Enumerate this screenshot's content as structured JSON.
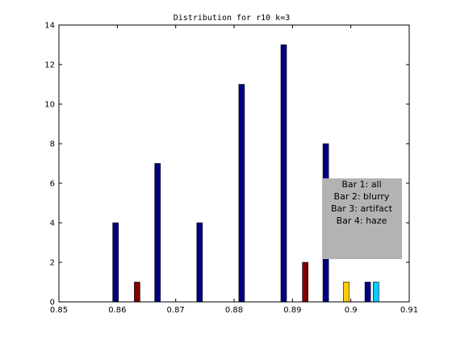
{
  "chart_data": {
    "type": "bar",
    "title": "Distribution for r10 k=3",
    "xlabel": "",
    "ylabel": "",
    "xlim": [
      0.85,
      0.91
    ],
    "ylim": [
      0,
      14
    ],
    "xticks": [
      0.85,
      0.86,
      0.87,
      0.88,
      0.89,
      0.9,
      0.91
    ],
    "xtick_labels": [
      "0.85",
      "0.86",
      "0.87",
      "0.88",
      "0.89",
      "0.9",
      "0.91"
    ],
    "yticks": [
      0,
      2,
      4,
      6,
      8,
      10,
      12,
      14
    ],
    "ytick_labels": [
      "0",
      "2",
      "4",
      "6",
      "8",
      "10",
      "12",
      "14"
    ],
    "grid": false,
    "legend_position": "center-right",
    "legend_lines": [
      "Bar 1: all",
      "Bar 2: blurry",
      "Bar 3: artifact",
      "Bar 4: haze"
    ],
    "series": [
      {
        "key": "all",
        "color": "#000080",
        "x": [
          0.8597,
          0.8669,
          0.8741,
          0.8813,
          0.8885,
          0.8957,
          0.9029
        ],
        "values": [
          4,
          7,
          4,
          11,
          13,
          8,
          1
        ]
      },
      {
        "key": "blurry",
        "color": "#800000",
        "x": [
          0.8634,
          0.8922
        ],
        "values": [
          1,
          2
        ]
      },
      {
        "key": "artifact",
        "color": "#FFCC00",
        "x": [
          0.8992
        ],
        "values": [
          1
        ]
      },
      {
        "key": "haze",
        "color": "#00CCFF",
        "x": [
          0.9043
        ],
        "values": [
          1
        ]
      }
    ]
  },
  "style": {
    "axis_color": "#000000",
    "bar_edge_color": "#000000",
    "legend_bg": "#B3B3B3"
  }
}
